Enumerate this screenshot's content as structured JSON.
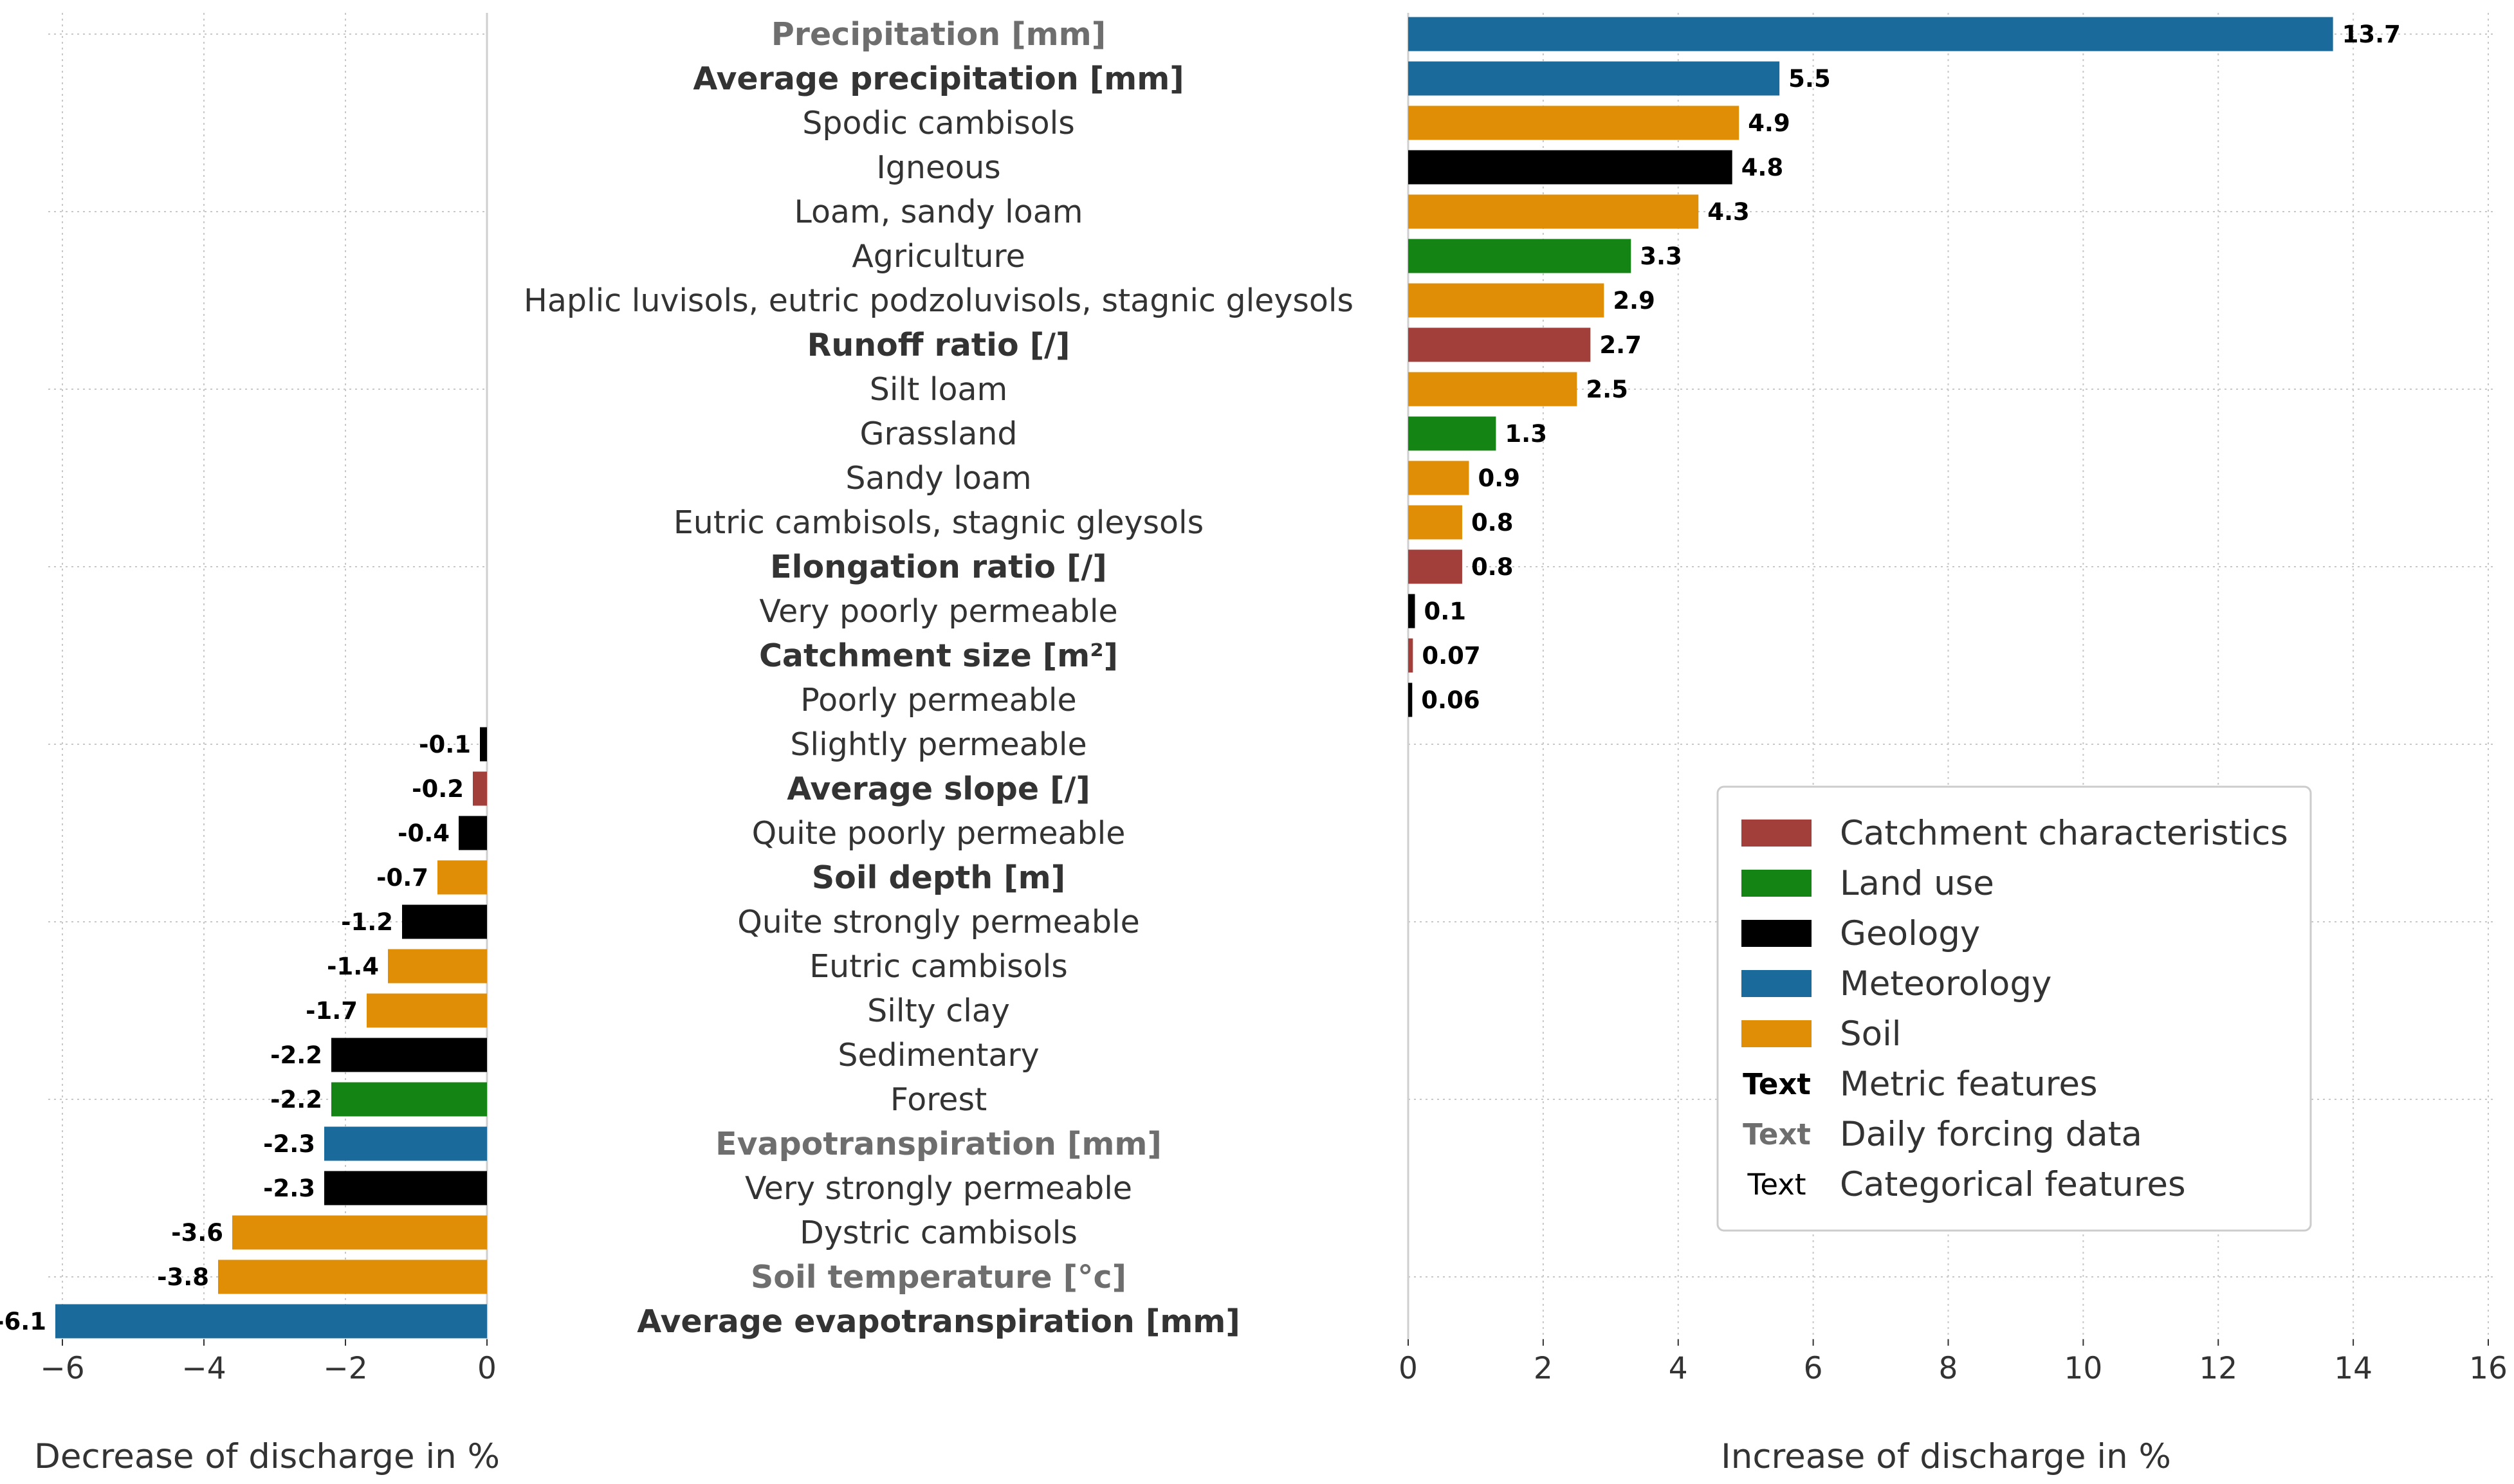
{
  "colors": {
    "catchment": "#a23f3a",
    "landuse": "#148414",
    "geology": "#000000",
    "meteorology": "#1a6b9c",
    "soil": "#df8e05",
    "metric_text": "#333333",
    "daily_text": "#6e6e6e",
    "categorical_text": "#333333"
  },
  "chart_data": [
    {
      "type": "bar",
      "orientation": "horizontal",
      "xlabel": "Decrease of discharge in %",
      "xlim": [
        -6.2,
        0
      ],
      "xticks": [
        "−6",
        "−4",
        "−2",
        "0"
      ],
      "grid": true
    },
    {
      "type": "bar",
      "orientation": "horizontal",
      "xlabel": "Increase of discharge in %",
      "xlim": [
        0,
        16
      ],
      "xticks": [
        "0",
        "2",
        "4",
        "6",
        "8",
        "10",
        "12",
        "14",
        "16"
      ],
      "grid": true,
      "features": [
        {
          "name": "Precipitation [mm]",
          "value": 13.7,
          "label": "13.7",
          "group": "meteorology",
          "style": "daily"
        },
        {
          "name": "Average precipitation [mm]",
          "value": 5.5,
          "label": "5.5",
          "group": "meteorology",
          "style": "metric"
        },
        {
          "name": "Spodic cambisols",
          "value": 4.9,
          "label": "4.9",
          "group": "soil",
          "style": "categorical"
        },
        {
          "name": "Igneous",
          "value": 4.8,
          "label": "4.8",
          "group": "geology",
          "style": "categorical"
        },
        {
          "name": "Loam, sandy loam",
          "value": 4.3,
          "label": "4.3",
          "group": "soil",
          "style": "categorical"
        },
        {
          "name": "Agriculture",
          "value": 3.3,
          "label": "3.3",
          "group": "landuse",
          "style": "categorical"
        },
        {
          "name": "Haplic luvisols, eutric podzoluvisols, stagnic gleysols",
          "value": 2.9,
          "label": "2.9",
          "group": "soil",
          "style": "categorical"
        },
        {
          "name": "Runoff ratio [/]",
          "value": 2.7,
          "label": "2.7",
          "group": "catchment",
          "style": "metric"
        },
        {
          "name": "Silt loam",
          "value": 2.5,
          "label": "2.5",
          "group": "soil",
          "style": "categorical"
        },
        {
          "name": "Grassland",
          "value": 1.3,
          "label": "1.3",
          "group": "landuse",
          "style": "categorical"
        },
        {
          "name": "Sandy loam",
          "value": 0.9,
          "label": "0.9",
          "group": "soil",
          "style": "categorical"
        },
        {
          "name": "Eutric cambisols, stagnic gleysols",
          "value": 0.8,
          "label": "0.8",
          "group": "soil",
          "style": "categorical"
        },
        {
          "name": "Elongation ratio [/]",
          "value": 0.8,
          "label": "0.8",
          "group": "catchment",
          "style": "metric"
        },
        {
          "name": "Very poorly permeable",
          "value": 0.1,
          "label": "0.1",
          "group": "geology",
          "style": "categorical"
        },
        {
          "name": "Catchment size [m²]",
          "value": 0.07,
          "label": "0.07",
          "group": "catchment",
          "style": "metric"
        },
        {
          "name": "Poorly permeable",
          "value": 0.06,
          "label": "0.06",
          "group": "geology",
          "style": "categorical"
        },
        {
          "name": "Slightly permeable",
          "value": -0.1,
          "label": "-0.1",
          "group": "geology",
          "style": "categorical"
        },
        {
          "name": "Average slope [/]",
          "value": -0.2,
          "label": "-0.2",
          "group": "catchment",
          "style": "metric"
        },
        {
          "name": "Quite poorly permeable",
          "value": -0.4,
          "label": "-0.4",
          "group": "geology",
          "style": "categorical"
        },
        {
          "name": "Soil depth [m]",
          "value": -0.7,
          "label": "-0.7",
          "group": "soil",
          "style": "metric"
        },
        {
          "name": "Quite strongly permeable",
          "value": -1.2,
          "label": "-1.2",
          "group": "geology",
          "style": "categorical"
        },
        {
          "name": "Eutric cambisols",
          "value": -1.4,
          "label": "-1.4",
          "group": "soil",
          "style": "categorical"
        },
        {
          "name": "Silty clay",
          "value": -1.7,
          "label": "-1.7",
          "group": "soil",
          "style": "categorical"
        },
        {
          "name": "Sedimentary",
          "value": -2.2,
          "label": "-2.2",
          "group": "geology",
          "style": "categorical"
        },
        {
          "name": "Forest",
          "value": -2.2,
          "label": "-2.2",
          "group": "landuse",
          "style": "categorical"
        },
        {
          "name": "Evapotranspiration [mm]",
          "value": -2.3,
          "label": "-2.3",
          "group": "meteorology",
          "style": "daily"
        },
        {
          "name": "Very strongly permeable",
          "value": -2.3,
          "label": "-2.3",
          "group": "geology",
          "style": "categorical"
        },
        {
          "name": "Dystric cambisols",
          "value": -3.6,
          "label": "-3.6",
          "group": "soil",
          "style": "categorical"
        },
        {
          "name": "Soil temperature [°c]",
          "value": -3.8,
          "label": "-3.8",
          "group": "soil",
          "style": "daily"
        },
        {
          "name": "Average evapotranspiration [mm]",
          "value": -6.1,
          "label": "-6.1",
          "group": "meteorology",
          "style": "metric"
        }
      ]
    }
  ],
  "legend": {
    "placement": "lower-right",
    "items": [
      {
        "label": "Catchment characteristics",
        "kind": "patch",
        "key": "catchment"
      },
      {
        "label": "Land use",
        "kind": "patch",
        "key": "landuse"
      },
      {
        "label": "Geology",
        "kind": "patch",
        "key": "geology"
      },
      {
        "label": "Meteorology",
        "kind": "patch",
        "key": "meteorology"
      },
      {
        "label": "Soil",
        "kind": "patch",
        "key": "soil"
      },
      {
        "label": "Metric features",
        "kind": "text",
        "sample": "Text",
        "style": "metric"
      },
      {
        "label": "Daily forcing data",
        "kind": "text",
        "sample": "Text",
        "style": "daily"
      },
      {
        "label": "Categorical features",
        "kind": "text",
        "sample": "Text",
        "style": "categorical"
      }
    ]
  }
}
